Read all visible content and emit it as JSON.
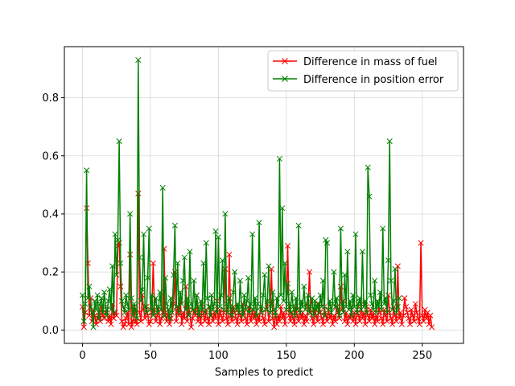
{
  "chart_data": {
    "type": "line",
    "title": "",
    "xlabel": "Samples to predict",
    "ylabel": "",
    "xlim": [
      -13.35,
      280.35
    ],
    "ylim": [
      -0.046,
      0.976
    ],
    "x_ticks": [
      0,
      50,
      100,
      150,
      200,
      250
    ],
    "y_ticks": [
      0.0,
      0.2,
      0.4,
      0.6,
      0.8
    ],
    "grid": true,
    "legend_position": "top-right",
    "series": [
      {
        "name": "Difference in mass of fuel",
        "color": "#ff0000",
        "marker": "x",
        "x_start": 0,
        "values": [
          0.08,
          0.01,
          0.06,
          0.42,
          0.23,
          0.05,
          0.11,
          0.03,
          0.07,
          0.05,
          0.02,
          0.04,
          0.06,
          0.03,
          0.08,
          0.05,
          0.04,
          0.06,
          0.07,
          0.03,
          0.05,
          0.02,
          0.09,
          0.04,
          0.06,
          0.05,
          0.29,
          0.3,
          0.15,
          0.03,
          0.01,
          0.02,
          0.04,
          0.06,
          0.02,
          0.26,
          0.01,
          0.03,
          0.08,
          0.03,
          0.02,
          0.47,
          0.06,
          0.03,
          0.12,
          0.07,
          0.04,
          0.08,
          0.05,
          0.02,
          0.03,
          0.06,
          0.23,
          0.07,
          0.03,
          0.05,
          0.08,
          0.02,
          0.04,
          0.06,
          0.28,
          0.05,
          0.03,
          0.07,
          0.02,
          0.04,
          0.06,
          0.09,
          0.2,
          0.03,
          0.08,
          0.05,
          0.1,
          0.02,
          0.06,
          0.04,
          0.15,
          0.03,
          0.08,
          0.06,
          0.01,
          0.04,
          0.07,
          0.05,
          0.12,
          0.03,
          0.06,
          0.02,
          0.09,
          0.05,
          0.03,
          0.07,
          0.04,
          0.02,
          0.08,
          0.05,
          0.03,
          0.06,
          0.04,
          0.1,
          0.02,
          0.07,
          0.05,
          0.03,
          0.06,
          0.21,
          0.04,
          0.02,
          0.26,
          0.05,
          0.03,
          0.08,
          0.06,
          0.04,
          0.02,
          0.07,
          0.05,
          0.03,
          0.09,
          0.06,
          0.04,
          0.02,
          0.08,
          0.05,
          0.03,
          0.07,
          0.04,
          0.06,
          0.02,
          0.05,
          0.03,
          0.08,
          0.06,
          0.04,
          0.02,
          0.07,
          0.09,
          0.03,
          0.06,
          0.21,
          0.04,
          0.01,
          0.06,
          0.02,
          0.05,
          0.03,
          0.08,
          0.04,
          0.06,
          0.02,
          0.07,
          0.29,
          0.05,
          0.03,
          0.06,
          0.04,
          0.02,
          0.08,
          0.05,
          0.03,
          0.07,
          0.04,
          0.06,
          0.02,
          0.05,
          0.03,
          0.08,
          0.2,
          0.06,
          0.04,
          0.02,
          0.07,
          0.05,
          0.03,
          0.09,
          0.06,
          0.04,
          0.02,
          0.08,
          0.05,
          0.03,
          0.07,
          0.04,
          0.06,
          0.02,
          0.05,
          0.03,
          0.08,
          0.06,
          0.04,
          0.15,
          0.07,
          0.1,
          0.03,
          0.06,
          0.02,
          0.05,
          0.04,
          0.08,
          0.03,
          0.06,
          0.02,
          0.07,
          0.05,
          0.03,
          0.09,
          0.04,
          0.06,
          0.02,
          0.08,
          0.05,
          0.03,
          0.07,
          0.04,
          0.06,
          0.02,
          0.05,
          0.03,
          0.08,
          0.06,
          0.04,
          0.02,
          0.07,
          0.05,
          0.03,
          0.12,
          0.06,
          0.04,
          0.02,
          0.08,
          0.05,
          0.03,
          0.22,
          0.04,
          0.06,
          0.02,
          0.05,
          0.11,
          0.08,
          0.06,
          0.04,
          0.02,
          0.07,
          0.05,
          0.03,
          0.09,
          0.06,
          0.04,
          0.02,
          0.3,
          0.05,
          0.03,
          0.07,
          0.04,
          0.06,
          0.02,
          0.05,
          0.01
        ]
      },
      {
        "name": "Difference in position error",
        "color": "#008000",
        "marker": "x",
        "x_start": 0,
        "values": [
          0.12,
          0.03,
          0.09,
          0.55,
          0.11,
          0.15,
          0.08,
          0.06,
          0.01,
          0.1,
          0.07,
          0.12,
          0.04,
          0.09,
          0.11,
          0.06,
          0.13,
          0.08,
          0.05,
          0.1,
          0.14,
          0.07,
          0.22,
          0.06,
          0.33,
          0.19,
          0.31,
          0.65,
          0.23,
          0.1,
          0.08,
          0.06,
          0.12,
          0.09,
          0.07,
          0.4,
          0.11,
          0.05,
          0.09,
          0.07,
          0.04,
          0.93,
          0.25,
          0.1,
          0.14,
          0.33,
          0.08,
          0.06,
          0.18,
          0.35,
          0.07,
          0.12,
          0.05,
          0.09,
          0.11,
          0.06,
          0.08,
          0.13,
          0.07,
          0.49,
          0.05,
          0.18,
          0.09,
          0.07,
          0.04,
          0.11,
          0.06,
          0.19,
          0.36,
          0.08,
          0.23,
          0.06,
          0.13,
          0.09,
          0.17,
          0.25,
          0.07,
          0.11,
          0.05,
          0.27,
          0.09,
          0.07,
          0.17,
          0.06,
          0.12,
          0.08,
          0.05,
          0.1,
          0.07,
          0.23,
          0.06,
          0.3,
          0.11,
          0.08,
          0.05,
          0.12,
          0.07,
          0.09,
          0.34,
          0.06,
          0.32,
          0.08,
          0.12,
          0.24,
          0.07,
          0.4,
          0.09,
          0.06,
          0.11,
          0.08,
          0.05,
          0.13,
          0.2,
          0.07,
          0.09,
          0.06,
          0.17,
          0.08,
          0.05,
          0.12,
          0.07,
          0.1,
          0.18,
          0.06,
          0.09,
          0.33,
          0.07,
          0.11,
          0.05,
          0.09,
          0.37,
          0.08,
          0.06,
          0.12,
          0.19,
          0.07,
          0.1,
          0.22,
          0.06,
          0.09,
          0.13,
          0.07,
          0.05,
          0.11,
          0.08,
          0.59,
          0.12,
          0.42,
          0.1,
          0.23,
          0.07,
          0.16,
          0.09,
          0.06,
          0.13,
          0.08,
          0.05,
          0.11,
          0.07,
          0.36,
          0.06,
          0.1,
          0.08,
          0.15,
          0.07,
          0.09,
          0.12,
          0.06,
          0.08,
          0.11,
          0.05,
          0.1,
          0.07,
          0.09,
          0.06,
          0.12,
          0.08,
          0.17,
          0.05,
          0.31,
          0.3,
          0.07,
          0.1,
          0.06,
          0.09,
          0.2,
          0.08,
          0.11,
          0.07,
          0.05,
          0.35,
          0.09,
          0.06,
          0.19,
          0.08,
          0.27,
          0.07,
          0.1,
          0.05,
          0.12,
          0.08,
          0.33,
          0.06,
          0.09,
          0.11,
          0.07,
          0.27,
          0.08,
          0.1,
          0.06,
          0.56,
          0.46,
          0.12,
          0.09,
          0.07,
          0.17,
          0.06,
          0.1,
          0.08,
          0.13,
          0.07,
          0.35,
          0.09,
          0.11,
          0.06,
          0.24,
          0.65,
          0.17,
          0.07,
          0.1,
          0.21,
          0.06,
          0.08,
          0.11
        ]
      }
    ]
  }
}
